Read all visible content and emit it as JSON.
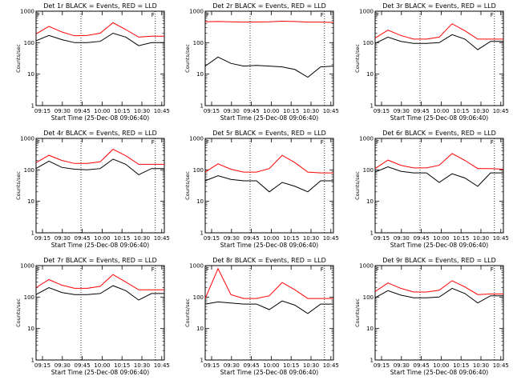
{
  "chart_data": [
    {
      "type": "line",
      "title": "Det 1r BLACK = Events, RED = LLD",
      "ylabel": "Counts/sec",
      "xlabel": "Start Time (25-Dec-08 09:06:40)",
      "xticks": [
        "09:15",
        "09:30",
        "09:45",
        "10:00",
        "10:15",
        "10:30",
        "10:45"
      ],
      "yticks": [
        "1",
        "10",
        "100",
        "1000"
      ],
      "ylim": [
        1,
        1000
      ],
      "yscale": "log",
      "flare_marker": "F",
      "series": [
        {
          "name": "Events",
          "color": "#000000",
          "x": [
            0,
            10,
            20,
            30,
            40,
            50,
            60,
            70,
            80,
            90,
            100
          ],
          "y": [
            115,
            170,
            125,
            100,
            100,
            110,
            200,
            150,
            80,
            100,
            100
          ]
        },
        {
          "name": "LLD",
          "color": "#ff0000",
          "x": [
            0,
            10,
            20,
            30,
            40,
            50,
            60,
            70,
            80,
            90,
            100
          ],
          "y": [
            190,
            330,
            220,
            165,
            170,
            200,
            430,
            260,
            150,
            160,
            160
          ]
        }
      ]
    },
    {
      "type": "line",
      "title": "Det 2r BLACK = Events, RED = LLD",
      "ylabel": "Counts/sec",
      "xlabel": "Start Time (25-Dec-08 09:06:40)",
      "xticks": [
        "09:15",
        "09:30",
        "09:45",
        "10:00",
        "10:15",
        "10:30",
        "10:45"
      ],
      "yticks": [
        "1",
        "10",
        "100",
        "1000"
      ],
      "ylim": [
        1,
        1000
      ],
      "yscale": "log",
      "flare_marker": "F",
      "series": [
        {
          "name": "Events",
          "color": "#000000",
          "x": [
            0,
            10,
            20,
            30,
            40,
            50,
            60,
            70,
            80,
            90,
            100
          ],
          "y": [
            18,
            35,
            22,
            18,
            19,
            18,
            17,
            14,
            8,
            17,
            18
          ]
        },
        {
          "name": "LLD",
          "color": "#ff0000",
          "x": [
            0,
            10,
            20,
            30,
            40,
            50,
            60,
            70,
            80,
            90,
            100
          ],
          "y": [
            460,
            470,
            460,
            450,
            455,
            460,
            480,
            470,
            450,
            450,
            440
          ]
        }
      ]
    },
    {
      "type": "line",
      "title": "Det 3r BLACK = Events, RED = LLD",
      "ylabel": "Counts/sec",
      "xlabel": "Start Time (25-Dec-08 09:06:40)",
      "xticks": [
        "09:15",
        "09:30",
        "09:45",
        "10:00",
        "10:15",
        "10:30",
        "10:45"
      ],
      "yticks": [
        "1",
        "10",
        "100",
        "1000"
      ],
      "ylim": [
        1,
        1000
      ],
      "yscale": "log",
      "flare_marker": "F",
      "series": [
        {
          "name": "Events",
          "color": "#000000",
          "x": [
            0,
            10,
            20,
            30,
            40,
            50,
            60,
            70,
            80,
            90,
            100
          ],
          "y": [
            95,
            150,
            110,
            95,
            95,
            100,
            180,
            130,
            60,
            110,
            110
          ]
        },
        {
          "name": "LLD",
          "color": "#ff0000",
          "x": [
            0,
            10,
            20,
            30,
            40,
            50,
            60,
            70,
            80,
            90,
            100
          ],
          "y": [
            140,
            250,
            170,
            130,
            130,
            150,
            400,
            240,
            130,
            130,
            130
          ]
        }
      ]
    },
    {
      "type": "line",
      "title": "Det 4r BLACK = Events, RED = LLD",
      "ylabel": "Counts/sec",
      "xlabel": "Start Time (25-Dec-08 09:06:40)",
      "xticks": [
        "09:15",
        "09:30",
        "09:45",
        "10:00",
        "10:15",
        "10:30",
        "10:45"
      ],
      "yticks": [
        "1",
        "10",
        "100",
        "1000"
      ],
      "ylim": [
        1,
        1000
      ],
      "yscale": "log",
      "flare_marker": "F",
      "series": [
        {
          "name": "Events",
          "color": "#000000",
          "x": [
            0,
            10,
            20,
            30,
            40,
            50,
            60,
            70,
            80,
            90,
            100
          ],
          "y": [
            110,
            190,
            120,
            105,
            100,
            110,
            220,
            150,
            70,
            110,
            110
          ]
        },
        {
          "name": "LLD",
          "color": "#ff0000",
          "x": [
            0,
            10,
            20,
            30,
            40,
            50,
            60,
            70,
            80,
            90,
            100
          ],
          "y": [
            170,
            290,
            200,
            160,
            160,
            180,
            450,
            280,
            150,
            150,
            150
          ]
        }
      ]
    },
    {
      "type": "line",
      "title": "Det 5r BLACK = Events, RED = LLD",
      "ylabel": "Counts/sec",
      "xlabel": "Start Time (25-Dec-08 09:06:40)",
      "xticks": [
        "09:15",
        "09:30",
        "09:45",
        "10:00",
        "10:15",
        "10:30",
        "10:45"
      ],
      "yticks": [
        "1",
        "10",
        "100",
        "1000"
      ],
      "ylim": [
        1,
        1000
      ],
      "yscale": "log",
      "flare_marker": "F",
      "series": [
        {
          "name": "Events",
          "color": "#000000",
          "x": [
            0,
            10,
            20,
            30,
            40,
            50,
            60,
            70,
            80,
            90,
            100
          ],
          "y": [
            45,
            65,
            50,
            45,
            45,
            20,
            40,
            30,
            20,
            45,
            45
          ]
        },
        {
          "name": "LLD",
          "color": "#ff0000",
          "x": [
            0,
            10,
            20,
            30,
            40,
            50,
            60,
            70,
            80,
            90,
            100
          ],
          "y": [
            85,
            155,
            105,
            85,
            85,
            110,
            290,
            170,
            85,
            80,
            80
          ]
        }
      ]
    },
    {
      "type": "line",
      "title": "Det 6r BLACK = Events, RED = LLD",
      "ylabel": "Counts/sec",
      "xlabel": "Start Time (25-Dec-08 09:06:40)",
      "xticks": [
        "09:15",
        "09:30",
        "09:45",
        "10:00",
        "10:15",
        "10:30",
        "10:45"
      ],
      "yticks": [
        "1",
        "10",
        "100",
        "1000"
      ],
      "ylim": [
        1,
        1000
      ],
      "yscale": "log",
      "flare_marker": "F",
      "series": [
        {
          "name": "Events",
          "color": "#000000",
          "x": [
            0,
            10,
            20,
            30,
            40,
            50,
            60,
            70,
            80,
            90,
            100
          ],
          "y": [
            85,
            125,
            90,
            80,
            80,
            40,
            75,
            55,
            30,
            80,
            80
          ]
        },
        {
          "name": "LLD",
          "color": "#ff0000",
          "x": [
            0,
            10,
            20,
            30,
            40,
            50,
            60,
            70,
            80,
            90,
            100
          ],
          "y": [
            110,
            205,
            140,
            115,
            115,
            140,
            330,
            200,
            110,
            110,
            105
          ]
        }
      ]
    },
    {
      "type": "line",
      "title": "Det 7r BLACK = Events, RED = LLD",
      "ylabel": "Counts/sec",
      "xlabel": "Start Time (25-Dec-08 09:06:40)",
      "xticks": [
        "09:15",
        "09:30",
        "09:45",
        "10:00",
        "10:15",
        "10:30",
        "10:45"
      ],
      "yticks": [
        "1",
        "10",
        "100",
        "1000"
      ],
      "ylim": [
        1,
        1000
      ],
      "yscale": "log",
      "flare_marker": "F",
      "series": [
        {
          "name": "Events",
          "color": "#000000",
          "x": [
            0,
            10,
            20,
            30,
            40,
            50,
            60,
            70,
            80,
            90,
            100
          ],
          "y": [
            120,
            200,
            140,
            120,
            120,
            130,
            230,
            160,
            80,
            130,
            130
          ]
        },
        {
          "name": "LLD",
          "color": "#ff0000",
          "x": [
            0,
            10,
            20,
            30,
            40,
            50,
            60,
            70,
            80,
            90,
            100
          ],
          "y": [
            200,
            360,
            240,
            190,
            190,
            220,
            520,
            300,
            170,
            170,
            170
          ]
        }
      ]
    },
    {
      "type": "line",
      "title": "Det 8r BLACK = Events, RED = LLD",
      "ylabel": "Counts/sec",
      "xlabel": "Start Time (25-Dec-08 09:06:40)",
      "xticks": [
        "09:15",
        "09:30",
        "09:45",
        "10:00",
        "10:15",
        "10:30",
        "10:45"
      ],
      "yticks": [
        "1",
        "10",
        "100",
        "1000"
      ],
      "ylim": [
        1,
        1000
      ],
      "yscale": "log",
      "flare_marker": "F",
      "series": [
        {
          "name": "Events",
          "color": "#000000",
          "x": [
            0,
            10,
            20,
            30,
            40,
            50,
            60,
            70,
            80,
            90,
            100
          ],
          "y": [
            60,
            70,
            65,
            60,
            60,
            40,
            75,
            55,
            30,
            60,
            60
          ]
        },
        {
          "name": "LLD",
          "color": "#ff0000",
          "x": [
            0,
            10,
            20,
            30,
            40,
            50,
            60,
            70,
            80,
            90,
            100
          ],
          "y": [
            90,
            800,
            120,
            90,
            90,
            110,
            290,
            170,
            90,
            90,
            90
          ]
        }
      ]
    },
    {
      "type": "line",
      "title": "Det 9r BLACK = Events, RED = LLD",
      "ylabel": "Counts/sec",
      "xlabel": "Start Time (25-Dec-08 09:06:40)",
      "xticks": [
        "09:15",
        "09:30",
        "09:45",
        "10:00",
        "10:15",
        "10:30",
        "10:45"
      ],
      "yticks": [
        "1",
        "10",
        "100",
        "1000"
      ],
      "ylim": [
        1,
        1000
      ],
      "yscale": "log",
      "flare_marker": "F",
      "series": [
        {
          "name": "Events",
          "color": "#000000",
          "x": [
            0,
            10,
            20,
            30,
            40,
            50,
            60,
            70,
            80,
            90,
            100
          ],
          "y": [
            95,
            160,
            115,
            95,
            95,
            100,
            190,
            130,
            65,
            110,
            110
          ]
        },
        {
          "name": "LLD",
          "color": "#ff0000",
          "x": [
            0,
            10,
            20,
            30,
            40,
            50,
            60,
            70,
            80,
            90,
            100
          ],
          "y": [
            150,
            280,
            190,
            145,
            145,
            165,
            330,
            210,
            120,
            125,
            125
          ]
        }
      ]
    }
  ]
}
